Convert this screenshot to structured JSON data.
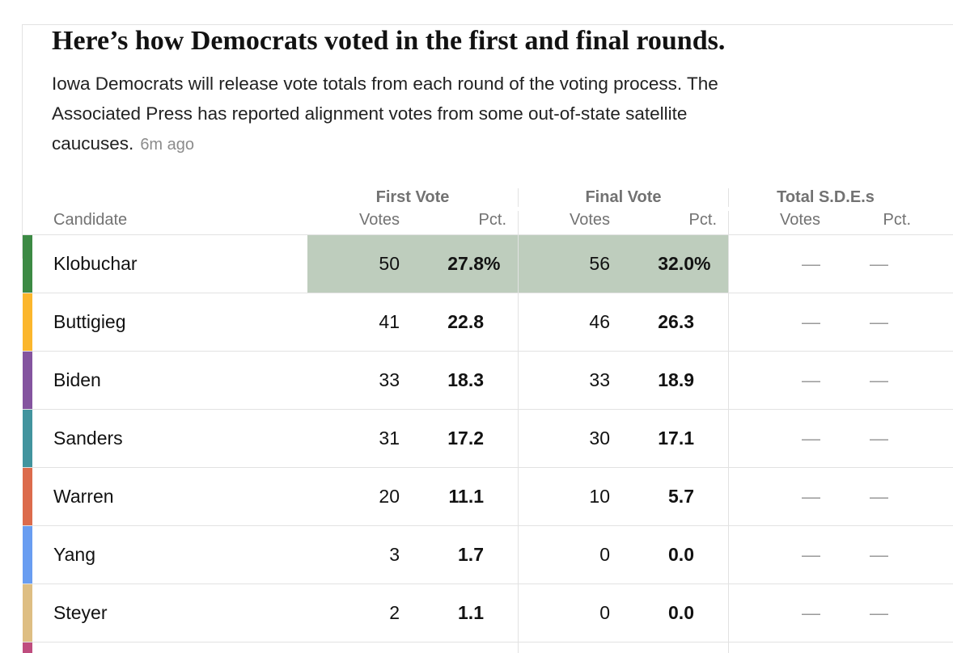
{
  "header": {
    "title": "Here’s how Democrats voted in the first and final rounds.",
    "subtitle_lines": [
      "Iowa Democrats will release vote totals from each round of the voting process. The",
      "Associated Press has reported alignment votes from some out-of-state satellite",
      "caucuses."
    ],
    "timestamp": "6m ago"
  },
  "table": {
    "candidate_col_label": "Candidate",
    "groups": [
      {
        "label": "First Vote",
        "votes_label": "Votes",
        "pct_label": "Pct."
      },
      {
        "label": "Final Vote",
        "votes_label": "Votes",
        "pct_label": "Pct."
      },
      {
        "label": "Total S.D.E.s",
        "votes_label": "Votes",
        "pct_label": "Pct."
      }
    ],
    "highlight_color": "#becdbd",
    "rows": [
      {
        "candidate": "Klobuchar",
        "color": "#3c8a44",
        "highlight": true,
        "first_votes": "50",
        "first_pct": "27.8",
        "first_pct_suffix": "%",
        "final_votes": "56",
        "final_pct": "32.0",
        "final_pct_suffix": "%",
        "sde_votes": "—",
        "sde_pct": "—"
      },
      {
        "candidate": "Buttigieg",
        "color": "#fbb62c",
        "first_votes": "41",
        "first_pct": "22.8",
        "first_pct_suffix": "",
        "final_votes": "46",
        "final_pct": "26.3",
        "final_pct_suffix": "",
        "sde_votes": "—",
        "sde_pct": "—"
      },
      {
        "candidate": "Biden",
        "color": "#84549f",
        "first_votes": "33",
        "first_pct": "18.3",
        "first_pct_suffix": "",
        "final_votes": "33",
        "final_pct": "18.9",
        "final_pct_suffix": "",
        "sde_votes": "—",
        "sde_pct": "—"
      },
      {
        "candidate": "Sanders",
        "color": "#42949e",
        "first_votes": "31",
        "first_pct": "17.2",
        "first_pct_suffix": "",
        "final_votes": "30",
        "final_pct": "17.1",
        "final_pct_suffix": "",
        "sde_votes": "—",
        "sde_pct": "—"
      },
      {
        "candidate": "Warren",
        "color": "#dc6b4c",
        "first_votes": "20",
        "first_pct": "11.1",
        "first_pct_suffix": "",
        "final_votes": "10",
        "final_pct": "5.7",
        "final_pct_suffix": "",
        "sde_votes": "—",
        "sde_pct": "—"
      },
      {
        "candidate": "Yang",
        "color": "#699df1",
        "first_votes": "3",
        "first_pct": "1.7",
        "first_pct_suffix": "",
        "final_votes": "0",
        "final_pct": "0.0",
        "final_pct_suffix": "",
        "sde_votes": "—",
        "sde_pct": "—"
      },
      {
        "candidate": "Steyer",
        "color": "#debe83",
        "first_votes": "2",
        "first_pct": "1.1",
        "first_pct_suffix": "",
        "final_votes": "0",
        "final_pct": "0.0",
        "final_pct_suffix": "",
        "sde_votes": "—",
        "sde_pct": "—"
      },
      {
        "candidate": "",
        "color": "#bf4d7e",
        "partial": true,
        "first_votes": "",
        "first_pct": "",
        "first_pct_suffix": "",
        "final_votes": "",
        "final_pct": "",
        "final_pct_suffix": "",
        "sde_votes": "",
        "sde_pct": ""
      }
    ]
  }
}
